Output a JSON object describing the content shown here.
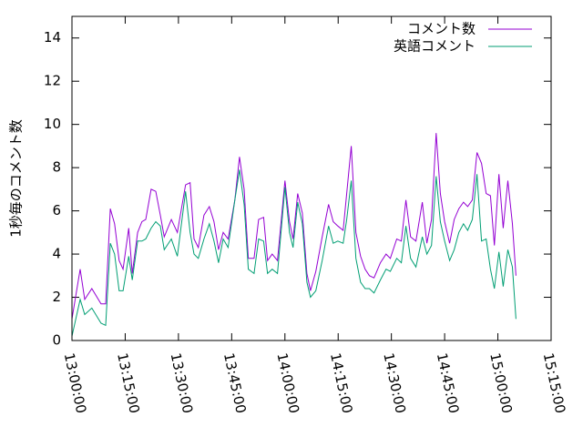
{
  "chart_data": {
    "type": "line",
    "ylabel": "1秒毎のコメント数",
    "x": [
      "13:00:00",
      "13:02:18",
      "13:03:36",
      "13:05:36",
      "13:08:12",
      "13:09:30",
      "13:10:48",
      "13:12:00",
      "13:13:18",
      "13:14:24",
      "13:16:00",
      "13:17:00",
      "13:18:30",
      "13:19:42",
      "13:20:48",
      "13:22:18",
      "13:23:36",
      "13:24:54",
      "13:26:00",
      "13:28:00",
      "13:29:42",
      "13:32:00",
      "13:33:18",
      "13:34:24",
      "13:35:36",
      "13:37:12",
      "13:38:42",
      "13:40:00",
      "13:41:18",
      "13:42:36",
      "13:44:00",
      "13:45:54",
      "13:47:12",
      "13:48:30",
      "13:49:42",
      "13:51:18",
      "13:52:36",
      "13:54:00",
      "13:55:06",
      "13:56:24",
      "13:57:54",
      "14:00:00",
      "14:01:18",
      "14:02:18",
      "14:03:36",
      "14:04:54",
      "14:06:12",
      "14:07:12",
      "14:08:42",
      "14:10:30",
      "14:12:18",
      "14:13:36",
      "14:14:54",
      "14:16:24",
      "14:17:24",
      "14:18:42",
      "14:20:00",
      "14:21:18",
      "14:22:36",
      "14:23:48",
      "14:25:06",
      "14:26:54",
      "14:28:30",
      "14:29:42",
      "14:31:30",
      "14:32:48",
      "14:34:06",
      "14:35:24",
      "14:36:54",
      "14:38:42",
      "14:40:00",
      "14:41:18",
      "14:42:36",
      "14:43:48",
      "14:45:00",
      "14:46:24",
      "14:47:42",
      "14:49:00",
      "14:50:18",
      "14:51:30",
      "14:52:48",
      "14:54:06",
      "14:55:24",
      "14:56:42",
      "14:57:54",
      "14:59:00",
      "15:00:18",
      "15:01:30",
      "15:02:48",
      "15:04:06",
      "15:05:06"
    ],
    "series": [
      {
        "name": "コメント数",
        "color": "#9400d3",
        "values": [
          1.0,
          3.3,
          1.9,
          2.4,
          1.7,
          1.7,
          6.1,
          5.4,
          3.7,
          3.3,
          5.2,
          3.1,
          5.0,
          5.5,
          5.6,
          7.0,
          6.9,
          5.8,
          4.8,
          5.6,
          5.0,
          7.2,
          7.3,
          4.7,
          4.3,
          5.8,
          6.2,
          5.5,
          4.2,
          5.0,
          4.7,
          6.5,
          8.5,
          7.0,
          3.8,
          3.8,
          5.6,
          5.7,
          3.7,
          4.0,
          3.7,
          7.4,
          5.5,
          4.7,
          6.8,
          5.9,
          3.1,
          2.3,
          3.2,
          4.8,
          6.3,
          5.5,
          5.3,
          5.1,
          6.8,
          9.0,
          5.0,
          3.9,
          3.3,
          3.0,
          2.9,
          3.6,
          4.0,
          3.8,
          4.7,
          4.6,
          6.5,
          4.8,
          4.6,
          6.4,
          4.5,
          5.6,
          9.6,
          6.8,
          5.5,
          4.5,
          5.6,
          6.1,
          6.4,
          6.2,
          6.5,
          8.7,
          8.2,
          6.8,
          6.7,
          4.4,
          7.7,
          5.2,
          7.4,
          5.4,
          3.0
        ]
      },
      {
        "name": "英語コメント",
        "color": "#009e73",
        "values": [
          0.2,
          1.9,
          1.2,
          1.5,
          0.8,
          0.7,
          4.5,
          4.0,
          2.3,
          2.3,
          3.9,
          2.8,
          4.6,
          4.6,
          4.7,
          5.2,
          5.5,
          5.3,
          4.2,
          4.7,
          3.9,
          6.9,
          5.0,
          4.0,
          3.8,
          4.7,
          5.4,
          4.6,
          3.6,
          4.7,
          4.3,
          6.5,
          7.9,
          6.3,
          3.3,
          3.1,
          4.7,
          4.6,
          3.1,
          3.3,
          3.1,
          7.1,
          5.0,
          4.3,
          6.4,
          5.4,
          2.7,
          2.0,
          2.3,
          3.7,
          5.3,
          4.5,
          4.6,
          4.5,
          5.6,
          7.4,
          3.8,
          2.7,
          2.4,
          2.4,
          2.2,
          2.8,
          3.3,
          3.2,
          3.8,
          3.6,
          5.3,
          3.8,
          3.4,
          4.8,
          4.0,
          4.4,
          7.6,
          5.5,
          4.6,
          3.7,
          4.2,
          5.0,
          5.4,
          5.1,
          5.6,
          7.7,
          4.6,
          4.7,
          3.3,
          2.4,
          4.1,
          2.5,
          4.2,
          3.4,
          1.0
        ]
      }
    ],
    "xlim": [
      "13:00:00",
      "15:15:00"
    ],
    "xticks": [
      "13:00:00",
      "13:15:00",
      "13:30:00",
      "13:45:00",
      "14:00:00",
      "14:15:00",
      "14:30:00",
      "14:45:00",
      "15:00:00",
      "15:15:00"
    ],
    "ylim": [
      0,
      15
    ],
    "yticks": [
      0,
      2,
      4,
      6,
      8,
      10,
      12,
      14
    ],
    "legend": "top-right"
  }
}
